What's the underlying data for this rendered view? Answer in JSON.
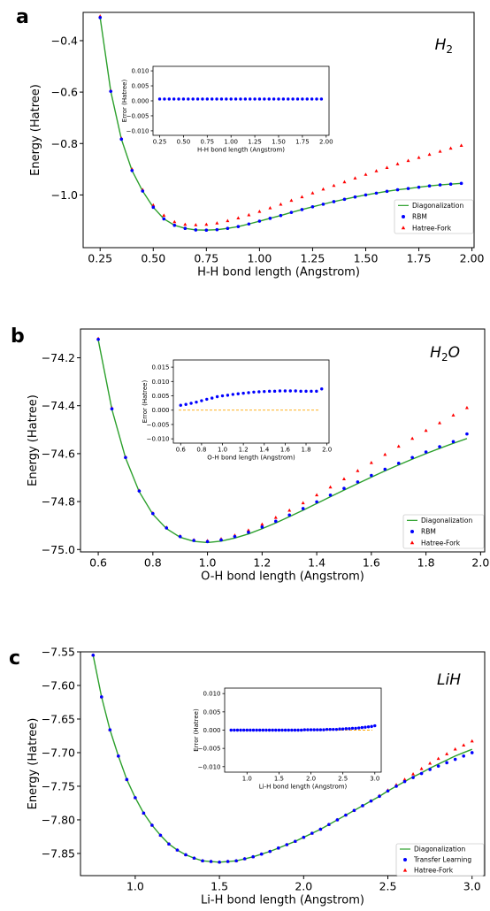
{
  "panel_labels": [
    "a",
    "b",
    "c"
  ],
  "legend_labels": {
    "a": [
      "Diagonalization",
      "RBM",
      "Hatree-Fork"
    ],
    "b": [
      "Diagonalization",
      "RBM",
      "Hatree-Fork"
    ],
    "c": [
      "Diagonalization",
      "Transfer Learning",
      "Hatree-Fork"
    ]
  },
  "colors": {
    "diagonalization": "#2ca02c",
    "rbm": "#0000ff",
    "hartree_fock": "#ff0000",
    "zero_line": "#ffa500"
  },
  "chart_data": [
    {
      "id": "a",
      "type": "line",
      "title": "H_2",
      "xlabel": "H-H bond length (Angstrom)",
      "ylabel": "Energy (Hatree)",
      "xlim": [
        0.17,
        2.01
      ],
      "ylim": [
        -1.205,
        -0.29
      ],
      "xticks": [
        0.25,
        0.5,
        0.75,
        1.0,
        1.25,
        1.5,
        1.75,
        2.0
      ],
      "xtick_labels": [
        "0.25",
        "0.50",
        "0.75",
        "1.00",
        "1.25",
        "1.50",
        "1.75",
        "2.00"
      ],
      "yticks": [
        -0.4,
        -0.6,
        -0.8,
        -1.0
      ],
      "ytick_labels": [
        "−0.4",
        "−0.6",
        "−0.8",
        "−1.0"
      ],
      "x": [
        0.25,
        0.3,
        0.35,
        0.4,
        0.45,
        0.5,
        0.55,
        0.6,
        0.65,
        0.7,
        0.75,
        0.8,
        0.85,
        0.9,
        0.95,
        1.0,
        1.05,
        1.1,
        1.15,
        1.2,
        1.25,
        1.3,
        1.35,
        1.4,
        1.45,
        1.5,
        1.55,
        1.6,
        1.65,
        1.7,
        1.75,
        1.8,
        1.85,
        1.9,
        1.95
      ],
      "series": [
        {
          "name": "Diagonalization",
          "kind": "line",
          "values": [
            -0.31,
            -0.597,
            -0.783,
            -0.905,
            -0.985,
            -1.048,
            -1.093,
            -1.118,
            -1.13,
            -1.136,
            -1.137,
            -1.135,
            -1.13,
            -1.123,
            -1.113,
            -1.102,
            -1.091,
            -1.08,
            -1.068,
            -1.057,
            -1.046,
            -1.036,
            -1.026,
            -1.017,
            -1.008,
            -1.0,
            -0.993,
            -0.986,
            -0.98,
            -0.975,
            -0.97,
            -0.965,
            -0.961,
            -0.958,
            -0.955
          ]
        },
        {
          "name": "RBM",
          "kind": "circle",
          "values": [
            -0.31,
            -0.597,
            -0.783,
            -0.905,
            -0.985,
            -1.048,
            -1.093,
            -1.118,
            -1.13,
            -1.136,
            -1.137,
            -1.135,
            -1.13,
            -1.123,
            -1.113,
            -1.102,
            -1.091,
            -1.08,
            -1.068,
            -1.057,
            -1.046,
            -1.036,
            -1.026,
            -1.017,
            -1.008,
            -1.0,
            -0.993,
            -0.986,
            -0.98,
            -0.975,
            -0.97,
            -0.965,
            -0.961,
            -0.958,
            -0.955
          ]
        },
        {
          "name": "Hatree-Fork",
          "kind": "triangle",
          "values": [
            -0.305,
            -0.595,
            -0.78,
            -0.9,
            -0.98,
            -1.04,
            -1.08,
            -1.105,
            -1.115,
            -1.117,
            -1.115,
            -1.11,
            -1.101,
            -1.09,
            -1.078,
            -1.065,
            -1.051,
            -1.037,
            -1.022,
            -1.008,
            -0.993,
            -0.978,
            -0.964,
            -0.95,
            -0.935,
            -0.921,
            -0.907,
            -0.894,
            -0.88,
            -0.867,
            -0.855,
            -0.843,
            -0.831,
            -0.819,
            -0.808
          ]
        }
      ],
      "inset": {
        "xlabel": "H-H bond length (Angstrom)",
        "ylabel": "Error (Hatree)",
        "xlim": [
          0.18,
          2.03
        ],
        "ylim": [
          -0.0115,
          0.0115
        ],
        "xticks": [
          0.25,
          0.5,
          0.75,
          1.0,
          1.25,
          1.5,
          1.75,
          2.0
        ],
        "xtick_labels": [
          "0.25",
          "0.50",
          "0.75",
          "1.00",
          "1.25",
          "1.50",
          "1.75",
          "2.00"
        ],
        "yticks": [
          0.01,
          0.005,
          0.0,
          -0.005,
          -0.01
        ],
        "ytick_labels": [
          "0.010",
          "0.005",
          "0.000",
          "−0.005",
          "−0.010"
        ],
        "x": [
          0.25,
          0.3,
          0.35,
          0.4,
          0.45,
          0.5,
          0.55,
          0.6,
          0.65,
          0.7,
          0.75,
          0.8,
          0.85,
          0.9,
          0.95,
          1.0,
          1.05,
          1.1,
          1.15,
          1.2,
          1.25,
          1.3,
          1.35,
          1.4,
          1.45,
          1.5,
          1.55,
          1.6,
          1.65,
          1.7,
          1.75,
          1.8,
          1.85,
          1.9,
          1.95
        ],
        "values": [
          0.0006,
          0.0006,
          0.0006,
          0.0006,
          0.0006,
          0.0006,
          0.0006,
          0.0006,
          0.0006,
          0.0006,
          0.0006,
          0.0006,
          0.0006,
          0.0006,
          0.0006,
          0.0006,
          0.0006,
          0.0006,
          0.0006,
          0.0006,
          0.0006,
          0.0006,
          0.0006,
          0.0006,
          0.0006,
          0.0006,
          0.0006,
          0.0006,
          0.0006,
          0.0006,
          0.0006,
          0.0006,
          0.0006,
          0.0006,
          0.0006
        ],
        "zero_line": false
      }
    },
    {
      "id": "b",
      "type": "line",
      "title": "H_2O",
      "xlabel": "O-H bond length (Angstrom)",
      "ylabel": "Energy (Hatree)",
      "xlim": [
        0.535,
        2.015
      ],
      "ylim": [
        -75.01,
        -74.08
      ],
      "xticks": [
        0.6,
        0.8,
        1.0,
        1.2,
        1.4,
        1.6,
        1.8,
        2.0
      ],
      "xtick_labels": [
        "0.6",
        "0.8",
        "1.0",
        "1.2",
        "1.4",
        "1.6",
        "1.8",
        "2.0"
      ],
      "yticks": [
        -74.2,
        -74.4,
        -74.6,
        -74.8,
        -75.0
      ],
      "ytick_labels": [
        "−74.2",
        "−74.4",
        "−74.6",
        "−74.8",
        "−75.0"
      ],
      "x": [
        0.6,
        0.65,
        0.7,
        0.75,
        0.8,
        0.85,
        0.9,
        0.95,
        1.0,
        1.05,
        1.1,
        1.15,
        1.2,
        1.25,
        1.3,
        1.35,
        1.4,
        1.45,
        1.5,
        1.55,
        1.6,
        1.65,
        1.7,
        1.75,
        1.8,
        1.85,
        1.9,
        1.95
      ],
      "series": [
        {
          "name": "Diagonalization",
          "kind": "line",
          "values": [
            -74.125,
            -74.415,
            -74.618,
            -74.759,
            -74.853,
            -74.913,
            -74.949,
            -74.966,
            -74.971,
            -74.965,
            -74.952,
            -74.935,
            -74.913,
            -74.889,
            -74.863,
            -74.836,
            -74.808,
            -74.78,
            -74.752,
            -74.725,
            -74.698,
            -74.672,
            -74.647,
            -74.623,
            -74.6,
            -74.578,
            -74.557,
            -74.537
          ]
        },
        {
          "name": "RBM",
          "kind": "circle",
          "values": [
            -74.123,
            -74.413,
            -74.616,
            -74.756,
            -74.85,
            -74.91,
            -74.946,
            -74.962,
            -74.967,
            -74.96,
            -74.946,
            -74.928,
            -74.906,
            -74.882,
            -74.856,
            -74.829,
            -74.801,
            -74.773,
            -74.745,
            -74.718,
            -74.691,
            -74.665,
            -74.64,
            -74.616,
            -74.593,
            -74.571,
            -74.55,
            -74.518
          ]
        },
        {
          "name": "Hatree-Fork",
          "kind": "triangle",
          "values": [
            -74.12,
            -74.41,
            -74.614,
            -74.754,
            -74.848,
            -74.908,
            -74.944,
            -74.96,
            -74.964,
            -74.956,
            -74.941,
            -74.92,
            -74.895,
            -74.867,
            -74.837,
            -74.806,
            -74.773,
            -74.74,
            -74.706,
            -74.672,
            -74.638,
            -74.604,
            -74.57,
            -74.537,
            -74.504,
            -74.472,
            -74.44,
            -74.409
          ]
        }
      ],
      "inset": {
        "xlabel": "O-H bond length (Angstrom)",
        "ylabel": "Error (Hatree)",
        "xlim": [
          0.53,
          2.02
        ],
        "ylim": [
          -0.0115,
          0.0175
        ],
        "xticks": [
          0.6,
          0.8,
          1.0,
          1.2,
          1.4,
          1.6,
          1.8,
          2.0
        ],
        "xtick_labels": [
          "0.6",
          "0.8",
          "1.0",
          "1.2",
          "1.4",
          "1.6",
          "1.8",
          "2.0"
        ],
        "yticks": [
          0.015,
          0.01,
          0.005,
          0.0,
          -0.005,
          -0.01
        ],
        "ytick_labels": [
          "0.015",
          "0.010",
          "0.005",
          "0.000",
          "−0.005",
          "−0.010"
        ],
        "x": [
          0.6,
          0.65,
          0.7,
          0.75,
          0.8,
          0.85,
          0.9,
          0.95,
          1.0,
          1.05,
          1.1,
          1.15,
          1.2,
          1.25,
          1.3,
          1.35,
          1.4,
          1.45,
          1.5,
          1.55,
          1.6,
          1.65,
          1.7,
          1.75,
          1.8,
          1.85,
          1.9,
          1.95
        ],
        "values": [
          0.0017,
          0.002,
          0.0024,
          0.0028,
          0.0033,
          0.0038,
          0.0042,
          0.0047,
          0.005,
          0.0052,
          0.0055,
          0.0057,
          0.0059,
          0.0061,
          0.0063,
          0.0064,
          0.0065,
          0.0066,
          0.0066,
          0.0067,
          0.0067,
          0.0067,
          0.0067,
          0.0066,
          0.0066,
          0.0066,
          0.0066,
          0.0074
        ],
        "zero_line": true
      }
    },
    {
      "id": "c",
      "type": "line",
      "title": "LiH",
      "xlabel": "Li-H bond length (Angstrom)",
      "ylabel": "Energy (Hatree)",
      "xlim": [
        0.675,
        3.075
      ],
      "ylim": [
        -7.883,
        -7.55
      ],
      "xticks": [
        1.0,
        1.5,
        2.0,
        2.5,
        3.0
      ],
      "xtick_labels": [
        "1.0",
        "1.5",
        "2.0",
        "2.5",
        "3.0"
      ],
      "yticks": [
        -7.55,
        -7.6,
        -7.65,
        -7.7,
        -7.75,
        -7.8,
        -7.85
      ],
      "ytick_labels": [
        "−7.55",
        "−7.60",
        "−7.65",
        "−7.70",
        "−7.75",
        "−7.80",
        "−7.85"
      ],
      "x": [
        0.75,
        0.8,
        0.85,
        0.9,
        0.95,
        1.0,
        1.05,
        1.1,
        1.15,
        1.2,
        1.25,
        1.3,
        1.35,
        1.4,
        1.45,
        1.5,
        1.55,
        1.6,
        1.65,
        1.7,
        1.75,
        1.8,
        1.85,
        1.9,
        1.95,
        2.0,
        2.05,
        2.1,
        2.15,
        2.2,
        2.25,
        2.3,
        2.35,
        2.4,
        2.45,
        2.5,
        2.55,
        2.6,
        2.65,
        2.7,
        2.75,
        2.8,
        2.85,
        2.9,
        2.95,
        3.0
      ],
      "series": [
        {
          "name": "Diagonalization",
          "kind": "line",
          "values": [
            -7.555,
            -7.617,
            -7.666,
            -7.705,
            -7.74,
            -7.767,
            -7.79,
            -7.808,
            -7.823,
            -7.836,
            -7.845,
            -7.852,
            -7.857,
            -7.861,
            -7.862,
            -7.863,
            -7.862,
            -7.861,
            -7.858,
            -7.855,
            -7.851,
            -7.847,
            -7.842,
            -7.837,
            -7.832,
            -7.826,
            -7.82,
            -7.814,
            -7.807,
            -7.8,
            -7.793,
            -7.786,
            -7.779,
            -7.772,
            -7.765,
            -7.757,
            -7.75,
            -7.743,
            -7.736,
            -7.73,
            -7.723,
            -7.717,
            -7.711,
            -7.705,
            -7.7,
            -7.695
          ]
        },
        {
          "name": "Transfer Learning",
          "kind": "circle",
          "values": [
            -7.555,
            -7.617,
            -7.666,
            -7.705,
            -7.74,
            -7.767,
            -7.79,
            -7.808,
            -7.823,
            -7.836,
            -7.845,
            -7.852,
            -7.857,
            -7.861,
            -7.862,
            -7.863,
            -7.862,
            -7.861,
            -7.858,
            -7.855,
            -7.851,
            -7.847,
            -7.842,
            -7.837,
            -7.832,
            -7.826,
            -7.82,
            -7.814,
            -7.807,
            -7.8,
            -7.793,
            -7.786,
            -7.779,
            -7.772,
            -7.765,
            -7.757,
            -7.75,
            -7.743,
            -7.737,
            -7.731,
            -7.725,
            -7.72,
            -7.715,
            -7.71,
            -7.705,
            -7.7
          ]
        },
        {
          "name": "Hatree-Fork",
          "kind": "triangle",
          "values": [
            -7.555,
            -7.617,
            -7.666,
            -7.705,
            -7.74,
            -7.767,
            -7.79,
            -7.808,
            -7.823,
            -7.836,
            -7.845,
            -7.852,
            -7.857,
            -7.861,
            -7.862,
            -7.863,
            -7.862,
            -7.861,
            -7.858,
            -7.855,
            -7.851,
            -7.847,
            -7.842,
            -7.837,
            -7.832,
            -7.826,
            -7.82,
            -7.814,
            -7.807,
            -7.8,
            -7.793,
            -7.786,
            -7.779,
            -7.772,
            -7.764,
            -7.756,
            -7.748,
            -7.74,
            -7.732,
            -7.724,
            -7.716,
            -7.709,
            -7.702,
            -7.695,
            -7.689,
            -7.683
          ]
        }
      ],
      "inset": {
        "xlabel": "Li-H bond length (Angstrom)",
        "ylabel": "Error (Hatree)",
        "xlim": [
          0.65,
          3.1
        ],
        "ylim": [
          -0.0115,
          0.0115
        ],
        "xticks": [
          1.0,
          1.5,
          2.0,
          2.5,
          3.0
        ],
        "xtick_labels": [
          "1.0",
          "1.5",
          "2.0",
          "2.5",
          "3.0"
        ],
        "yticks": [
          0.01,
          0.005,
          0.0,
          -0.005,
          -0.01
        ],
        "ytick_labels": [
          "0.010",
          "0.005",
          "0.000",
          "−0.005",
          "−0.010"
        ],
        "x": [
          0.75,
          0.8,
          0.85,
          0.9,
          0.95,
          1.0,
          1.05,
          1.1,
          1.15,
          1.2,
          1.25,
          1.3,
          1.35,
          1.4,
          1.45,
          1.5,
          1.55,
          1.6,
          1.65,
          1.7,
          1.75,
          1.8,
          1.85,
          1.9,
          1.95,
          2.0,
          2.05,
          2.1,
          2.15,
          2.2,
          2.25,
          2.3,
          2.35,
          2.4,
          2.45,
          2.5,
          2.55,
          2.6,
          2.65,
          2.7,
          2.75,
          2.8,
          2.85,
          2.9,
          2.95,
          3.0
        ],
        "values": [
          0.0,
          0.0,
          0.0,
          0.0,
          0.0,
          0.0,
          0.0,
          0.0,
          0.0,
          0.0,
          0.0,
          0.0,
          0.0,
          0.0,
          0.0,
          0.0,
          0.0,
          0.0,
          0.0,
          0.0,
          0.0,
          0.0,
          0.0,
          0.0001,
          0.0001,
          0.0001,
          0.0001,
          0.0001,
          0.0001,
          0.0001,
          0.0002,
          0.0002,
          0.0002,
          0.0002,
          0.0003,
          0.0003,
          0.0004,
          0.0004,
          0.0005,
          0.0005,
          0.0006,
          0.0007,
          0.0008,
          0.0009,
          0.001,
          0.0012
        ],
        "zero_line": true
      }
    }
  ]
}
